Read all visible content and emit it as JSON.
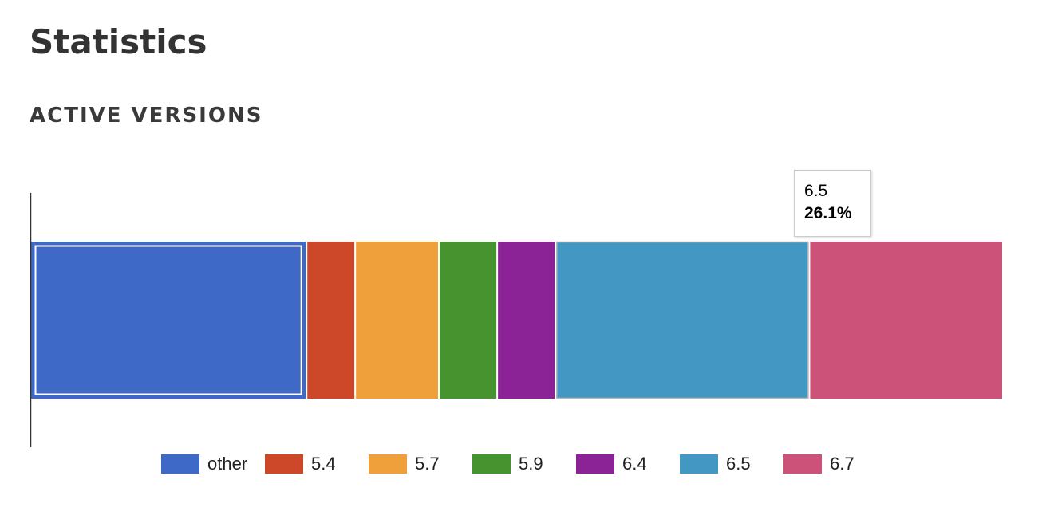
{
  "page": {
    "title": "Statistics",
    "section_title": "ACTIVE VERSIONS"
  },
  "tooltip": {
    "label": "6.5",
    "value": "26.1%"
  },
  "chart_data": {
    "type": "bar",
    "orientation": "horizontal",
    "stacked": true,
    "percent": true,
    "categories": [
      ""
    ],
    "series": [
      {
        "name": "other",
        "color": "#3f69c6",
        "values": [
          28.4
        ]
      },
      {
        "name": "5.4",
        "color": "#cc4828",
        "values": [
          5.0
        ]
      },
      {
        "name": "5.7",
        "color": "#f0a03a",
        "values": [
          8.6
        ]
      },
      {
        "name": "5.9",
        "color": "#46932f",
        "values": [
          6.0
        ]
      },
      {
        "name": "6.4",
        "color": "#8b2295",
        "values": [
          6.0
        ]
      },
      {
        "name": "6.5",
        "color": "#4398c3",
        "values": [
          26.1
        ]
      },
      {
        "name": "6.7",
        "color": "#cc5279",
        "values": [
          19.9
        ]
      }
    ],
    "xlim": [
      0,
      100
    ],
    "grid": false,
    "legend_position": "bottom",
    "highlighted_series": "6.5",
    "selected_series": "other"
  }
}
